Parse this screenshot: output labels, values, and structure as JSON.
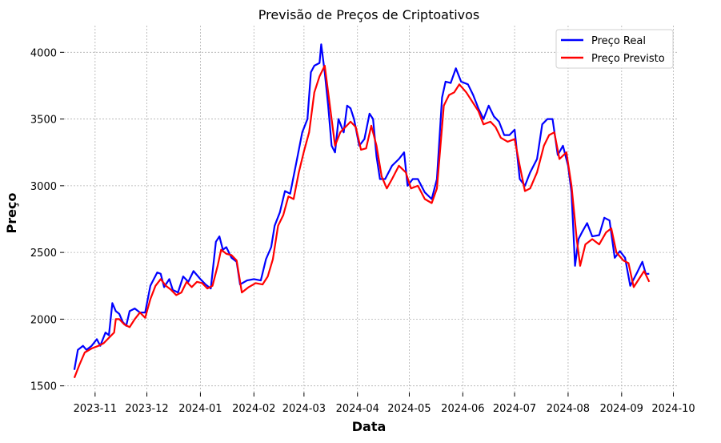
{
  "chart_data": {
    "type": "line",
    "title": "Previsão de Preços de Criptoativos",
    "xlabel": "Data",
    "ylabel": "Preço",
    "x_ticks": [
      "2023-11",
      "2023-12",
      "2024-01",
      "2024-02",
      "2024-03",
      "2024-04",
      "2024-05",
      "2024-06",
      "2024-07",
      "2024-08",
      "2024-09",
      "2024-10"
    ],
    "y_ticks": [
      1500,
      2000,
      2500,
      3000,
      3500,
      4000
    ],
    "ylim": [
      1450,
      4200
    ],
    "xlim": [
      "2023-10-14",
      "2024-10-04"
    ],
    "grid": true,
    "legend": "top-right",
    "series": [
      {
        "name": "Preço Real",
        "color": "#0000ff",
        "points": [
          [
            "2023-10-20",
            1620
          ],
          [
            "2023-10-22",
            1770
          ],
          [
            "2023-10-25",
            1800
          ],
          [
            "2023-10-27",
            1770
          ],
          [
            "2023-10-30",
            1800
          ],
          [
            "2023-11-02",
            1850
          ],
          [
            "2023-11-04",
            1800
          ],
          [
            "2023-11-07",
            1900
          ],
          [
            "2023-11-09",
            1880
          ],
          [
            "2023-11-11",
            2120
          ],
          [
            "2023-11-13",
            2060
          ],
          [
            "2023-11-15",
            2040
          ],
          [
            "2023-11-17",
            1980
          ],
          [
            "2023-11-19",
            1950
          ],
          [
            "2023-11-21",
            2060
          ],
          [
            "2023-11-24",
            2080
          ],
          [
            "2023-11-27",
            2050
          ],
          [
            "2023-11-30",
            2050
          ],
          [
            "2023-12-03",
            2250
          ],
          [
            "2023-12-05",
            2300
          ],
          [
            "2023-12-07",
            2350
          ],
          [
            "2023-12-09",
            2340
          ],
          [
            "2023-12-11",
            2240
          ],
          [
            "2023-12-14",
            2300
          ],
          [
            "2023-12-16",
            2220
          ],
          [
            "2023-12-19",
            2200
          ],
          [
            "2023-12-22",
            2320
          ],
          [
            "2023-12-25",
            2280
          ],
          [
            "2023-12-28",
            2360
          ],
          [
            "2024-01-01",
            2300
          ],
          [
            "2024-01-04",
            2260
          ],
          [
            "2024-01-07",
            2230
          ],
          [
            "2024-01-10",
            2580
          ],
          [
            "2024-01-12",
            2620
          ],
          [
            "2024-01-14",
            2520
          ],
          [
            "2024-01-16",
            2540
          ],
          [
            "2024-01-19",
            2460
          ],
          [
            "2024-01-22",
            2430
          ],
          [
            "2024-01-24",
            2260
          ],
          [
            "2024-01-28",
            2290
          ],
          [
            "2024-02-01",
            2300
          ],
          [
            "2024-02-05",
            2290
          ],
          [
            "2024-02-08",
            2450
          ],
          [
            "2024-02-11",
            2540
          ],
          [
            "2024-02-13",
            2700
          ],
          [
            "2024-02-16",
            2800
          ],
          [
            "2024-02-19",
            2960
          ],
          [
            "2024-02-22",
            2940
          ],
          [
            "2024-02-26",
            3200
          ],
          [
            "2024-02-29",
            3400
          ],
          [
            "2024-03-03",
            3500
          ],
          [
            "2024-03-05",
            3850
          ],
          [
            "2024-03-07",
            3900
          ],
          [
            "2024-03-10",
            3920
          ],
          [
            "2024-03-11",
            4060
          ],
          [
            "2024-03-13",
            3850
          ],
          [
            "2024-03-15",
            3600
          ],
          [
            "2024-03-17",
            3300
          ],
          [
            "2024-03-19",
            3250
          ],
          [
            "2024-03-21",
            3500
          ],
          [
            "2024-03-24",
            3400
          ],
          [
            "2024-03-26",
            3600
          ],
          [
            "2024-03-28",
            3580
          ],
          [
            "2024-03-30",
            3500
          ],
          [
            "2024-04-02",
            3300
          ],
          [
            "2024-04-05",
            3350
          ],
          [
            "2024-04-08",
            3540
          ],
          [
            "2024-04-10",
            3500
          ],
          [
            "2024-04-12",
            3220
          ],
          [
            "2024-04-14",
            3050
          ],
          [
            "2024-04-17",
            3050
          ],
          [
            "2024-04-21",
            3150
          ],
          [
            "2024-04-25",
            3200
          ],
          [
            "2024-04-28",
            3250
          ],
          [
            "2024-04-30",
            3000
          ],
          [
            "2024-05-03",
            3050
          ],
          [
            "2024-05-06",
            3050
          ],
          [
            "2024-05-10",
            2950
          ],
          [
            "2024-05-14",
            2900
          ],
          [
            "2024-05-17",
            3050
          ],
          [
            "2024-05-20",
            3660
          ],
          [
            "2024-05-22",
            3780
          ],
          [
            "2024-05-25",
            3770
          ],
          [
            "2024-05-28",
            3880
          ],
          [
            "2024-05-31",
            3780
          ],
          [
            "2024-06-04",
            3760
          ],
          [
            "2024-06-07",
            3680
          ],
          [
            "2024-06-10",
            3580
          ],
          [
            "2024-06-13",
            3500
          ],
          [
            "2024-06-16",
            3600
          ],
          [
            "2024-06-19",
            3520
          ],
          [
            "2024-06-22",
            3480
          ],
          [
            "2024-06-25",
            3380
          ],
          [
            "2024-06-28",
            3380
          ],
          [
            "2024-07-01",
            3420
          ],
          [
            "2024-07-04",
            3050
          ],
          [
            "2024-07-07",
            3000
          ],
          [
            "2024-07-10",
            3100
          ],
          [
            "2024-07-14",
            3200
          ],
          [
            "2024-07-17",
            3460
          ],
          [
            "2024-07-20",
            3500
          ],
          [
            "2024-07-23",
            3500
          ],
          [
            "2024-07-26",
            3230
          ],
          [
            "2024-07-29",
            3300
          ],
          [
            "2024-08-01",
            3150
          ],
          [
            "2024-08-03",
            2950
          ],
          [
            "2024-08-05",
            2400
          ],
          [
            "2024-08-07",
            2600
          ],
          [
            "2024-08-09",
            2650
          ],
          [
            "2024-08-12",
            2720
          ],
          [
            "2024-08-15",
            2620
          ],
          [
            "2024-08-19",
            2630
          ],
          [
            "2024-08-22",
            2760
          ],
          [
            "2024-08-25",
            2740
          ],
          [
            "2024-08-28",
            2460
          ],
          [
            "2024-08-31",
            2510
          ],
          [
            "2024-09-03",
            2460
          ],
          [
            "2024-09-06",
            2250
          ],
          [
            "2024-09-10",
            2350
          ],
          [
            "2024-09-13",
            2430
          ],
          [
            "2024-09-15",
            2340
          ],
          [
            "2024-09-17",
            2340
          ]
        ]
      },
      {
        "name": "Preço Previsto",
        "color": "#ff0000",
        "points": [
          [
            "2023-10-20",
            1560
          ],
          [
            "2023-10-23",
            1660
          ],
          [
            "2023-10-26",
            1750
          ],
          [
            "2023-10-30",
            1780
          ],
          [
            "2023-11-03",
            1800
          ],
          [
            "2023-11-06",
            1820
          ],
          [
            "2023-11-09",
            1860
          ],
          [
            "2023-11-12",
            1900
          ],
          [
            "2023-11-13",
            2000
          ],
          [
            "2023-11-15",
            2000
          ],
          [
            "2023-11-18",
            1960
          ],
          [
            "2023-11-21",
            1940
          ],
          [
            "2023-11-24",
            2000
          ],
          [
            "2023-11-27",
            2050
          ],
          [
            "2023-11-30",
            2010
          ],
          [
            "2023-12-03",
            2150
          ],
          [
            "2023-12-06",
            2250
          ],
          [
            "2023-12-09",
            2300
          ],
          [
            "2023-12-12",
            2250
          ],
          [
            "2023-12-15",
            2220
          ],
          [
            "2023-12-18",
            2180
          ],
          [
            "2023-12-21",
            2200
          ],
          [
            "2023-12-24",
            2280
          ],
          [
            "2023-12-27",
            2240
          ],
          [
            "2023-12-30",
            2280
          ],
          [
            "2024-01-02",
            2270
          ],
          [
            "2024-01-05",
            2230
          ],
          [
            "2024-01-08",
            2250
          ],
          [
            "2024-01-11",
            2400
          ],
          [
            "2024-01-13",
            2520
          ],
          [
            "2024-01-16",
            2490
          ],
          [
            "2024-01-19",
            2480
          ],
          [
            "2024-01-22",
            2440
          ],
          [
            "2024-01-25",
            2200
          ],
          [
            "2024-01-29",
            2240
          ],
          [
            "2024-02-02",
            2270
          ],
          [
            "2024-02-06",
            2260
          ],
          [
            "2024-02-09",
            2320
          ],
          [
            "2024-02-12",
            2450
          ],
          [
            "2024-02-15",
            2700
          ],
          [
            "2024-02-18",
            2780
          ],
          [
            "2024-02-21",
            2920
          ],
          [
            "2024-02-24",
            2900
          ],
          [
            "2024-02-27",
            3100
          ],
          [
            "2024-03-01",
            3260
          ],
          [
            "2024-03-04",
            3400
          ],
          [
            "2024-03-07",
            3700
          ],
          [
            "2024-03-10",
            3820
          ],
          [
            "2024-03-13",
            3900
          ],
          [
            "2024-03-15",
            3700
          ],
          [
            "2024-03-17",
            3500
          ],
          [
            "2024-03-19",
            3300
          ],
          [
            "2024-03-22",
            3400
          ],
          [
            "2024-03-25",
            3440
          ],
          [
            "2024-03-28",
            3480
          ],
          [
            "2024-03-31",
            3440
          ],
          [
            "2024-04-03",
            3270
          ],
          [
            "2024-04-06",
            3280
          ],
          [
            "2024-04-09",
            3450
          ],
          [
            "2024-04-12",
            3300
          ],
          [
            "2024-04-15",
            3070
          ],
          [
            "2024-04-18",
            2980
          ],
          [
            "2024-04-21",
            3050
          ],
          [
            "2024-04-25",
            3150
          ],
          [
            "2024-04-29",
            3100
          ],
          [
            "2024-05-02",
            2980
          ],
          [
            "2024-05-06",
            3000
          ],
          [
            "2024-05-10",
            2900
          ],
          [
            "2024-05-14",
            2870
          ],
          [
            "2024-05-17",
            2980
          ],
          [
            "2024-05-21",
            3600
          ],
          [
            "2024-05-24",
            3680
          ],
          [
            "2024-05-27",
            3700
          ],
          [
            "2024-05-30",
            3760
          ],
          [
            "2024-06-03",
            3700
          ],
          [
            "2024-06-07",
            3620
          ],
          [
            "2024-06-10",
            3560
          ],
          [
            "2024-06-13",
            3460
          ],
          [
            "2024-06-17",
            3480
          ],
          [
            "2024-06-20",
            3440
          ],
          [
            "2024-06-23",
            3360
          ],
          [
            "2024-06-27",
            3330
          ],
          [
            "2024-07-01",
            3350
          ],
          [
            "2024-07-04",
            3150
          ],
          [
            "2024-07-07",
            2960
          ],
          [
            "2024-07-10",
            2980
          ],
          [
            "2024-07-14",
            3100
          ],
          [
            "2024-07-18",
            3300
          ],
          [
            "2024-07-21",
            3380
          ],
          [
            "2024-07-24",
            3400
          ],
          [
            "2024-07-27",
            3200
          ],
          [
            "2024-07-31",
            3250
          ],
          [
            "2024-08-03",
            3000
          ],
          [
            "2024-08-06",
            2600
          ],
          [
            "2024-08-08",
            2400
          ],
          [
            "2024-08-11",
            2560
          ],
          [
            "2024-08-15",
            2600
          ],
          [
            "2024-08-19",
            2560
          ],
          [
            "2024-08-23",
            2650
          ],
          [
            "2024-08-26",
            2680
          ],
          [
            "2024-08-29",
            2500
          ],
          [
            "2024-09-02",
            2440
          ],
          [
            "2024-09-05",
            2420
          ],
          [
            "2024-09-08",
            2240
          ],
          [
            "2024-09-11",
            2300
          ],
          [
            "2024-09-14",
            2360
          ],
          [
            "2024-09-17",
            2280
          ]
        ]
      }
    ]
  }
}
